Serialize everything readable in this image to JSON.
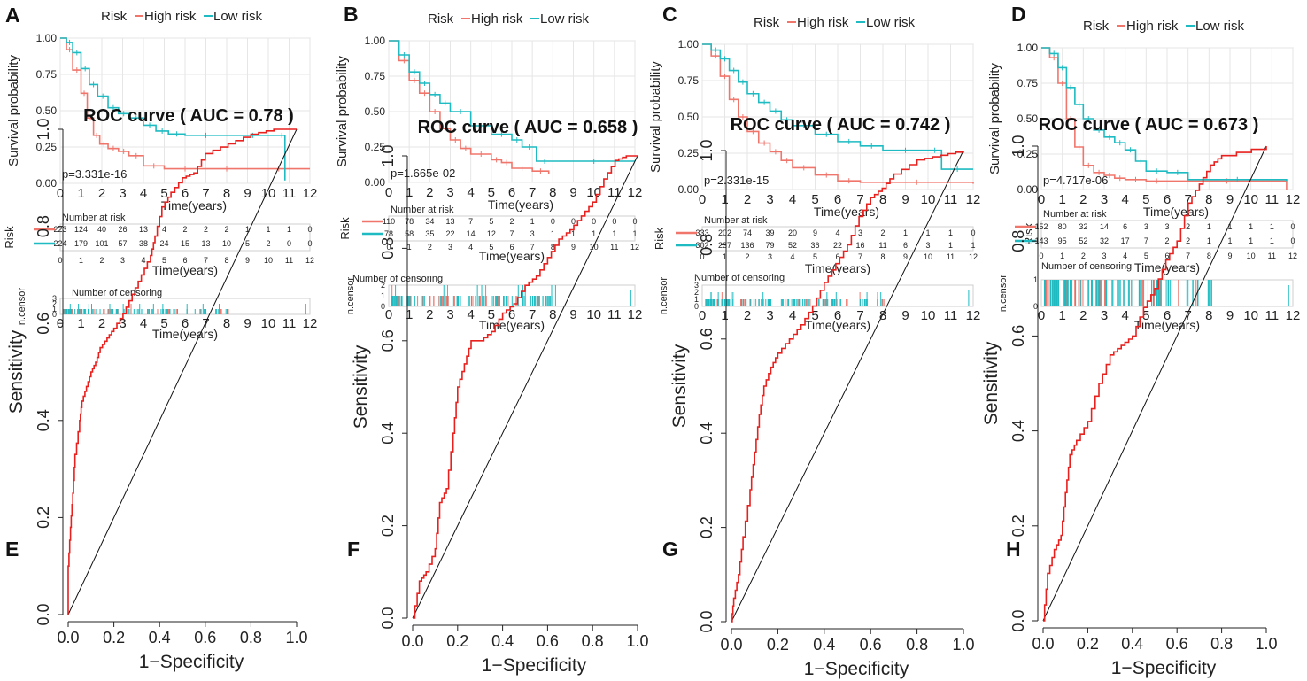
{
  "colors": {
    "high_risk": "#f0766c",
    "low_risk": "#1ebcc2",
    "roc": "#e8201e",
    "grid": "#e6e6e6",
    "panel_border": "#cfcfcf"
  },
  "chart_data": [
    {
      "panel": "A",
      "type": "line",
      "subtype": "kaplan-meier",
      "legend_title": "Risk",
      "legend_entries": [
        "High risk",
        "Low risk"
      ],
      "ylabel": "Survival probability",
      "xlabel": "Time(years)",
      "xlim": [
        0,
        12
      ],
      "ylim": [
        0,
        1
      ],
      "x_ticks": [
        "0",
        "1",
        "2",
        "3",
        "4",
        "5",
        "6",
        "7",
        "8",
        "9",
        "10",
        "11",
        "12"
      ],
      "y_ticks": [
        "0.00",
        "0.25",
        "0.50",
        "0.75",
        "1.00"
      ],
      "pvalue_text": "p=3.331e-16",
      "series": [
        {
          "name": "High risk",
          "x": [
            0,
            0.3,
            0.6,
            1.0,
            1.3,
            1.6,
            1.9,
            2.3,
            2.8,
            3.3,
            4.0,
            5.0,
            7.0,
            9.0,
            12.0
          ],
          "y": [
            1.0,
            0.92,
            0.78,
            0.62,
            0.45,
            0.33,
            0.27,
            0.24,
            0.22,
            0.19,
            0.12,
            0.1,
            0.1,
            0.1,
            0.1
          ]
        },
        {
          "name": "Low risk",
          "x": [
            0,
            0.3,
            0.6,
            1.0,
            1.4,
            1.8,
            2.3,
            2.8,
            3.3,
            4.0,
            4.6,
            5.2,
            6.0,
            8.0,
            10.5,
            10.8
          ],
          "y": [
            1.0,
            0.97,
            0.9,
            0.79,
            0.68,
            0.6,
            0.52,
            0.48,
            0.45,
            0.4,
            0.36,
            0.34,
            0.33,
            0.33,
            0.33,
            0.02
          ]
        }
      ],
      "risk_table": {
        "title": "Number at risk",
        "row_label": "Risk",
        "xlabel": "Time(years)",
        "x_ticks": [
          "0",
          "1",
          "2",
          "3",
          "4",
          "5",
          "6",
          "7",
          "8",
          "9",
          "10",
          "11",
          "12"
        ],
        "rows": [
          {
            "name": "High risk",
            "values": [
              "223",
              "124",
              "40",
              "26",
              "13",
              "4",
              "2",
              "2",
              "2",
              "1",
              "1",
              "1",
              "0"
            ]
          },
          {
            "name": "Low risk",
            "values": [
              "224",
              "179",
              "101",
              "57",
              "38",
              "24",
              "15",
              "13",
              "10",
              "5",
              "2",
              "0",
              "0"
            ]
          }
        ]
      },
      "censor": {
        "title": "Number of censoring",
        "ylabel": "n.censor",
        "xlabel": "Time(years)",
        "x_ticks": [
          "0",
          "1",
          "2",
          "3",
          "4",
          "5",
          "6",
          "7",
          "8",
          "9",
          "10",
          "11",
          "12"
        ],
        "y_ticks": [
          "0",
          "1",
          "2",
          "3"
        ],
        "ymax": 3
      }
    },
    {
      "panel": "B",
      "type": "line",
      "subtype": "kaplan-meier",
      "legend_title": "Risk",
      "legend_entries": [
        "High risk",
        "Low risk"
      ],
      "ylabel": "Survival probability",
      "xlabel": "Time(years)",
      "xlim": [
        0,
        12
      ],
      "ylim": [
        0,
        1
      ],
      "x_ticks": [
        "0",
        "1",
        "2",
        "3",
        "4",
        "5",
        "6",
        "7",
        "8",
        "9",
        "10",
        "11",
        "12"
      ],
      "y_ticks": [
        "0.00",
        "0.25",
        "0.50",
        "0.75",
        "1.00"
      ],
      "pvalue_text": "p=1.665e-02",
      "series": [
        {
          "name": "High risk",
          "x": [
            0,
            0.5,
            1.0,
            1.5,
            2.0,
            2.5,
            3.0,
            3.5,
            4.0,
            5.0,
            5.5,
            6.0,
            7.0,
            7.8
          ],
          "y": [
            1.0,
            0.86,
            0.72,
            0.63,
            0.5,
            0.38,
            0.3,
            0.24,
            0.2,
            0.16,
            0.14,
            0.1,
            0.08,
            0.06
          ]
        },
        {
          "name": "Low risk",
          "x": [
            0,
            0.5,
            1.0,
            1.5,
            2.0,
            2.5,
            3.0,
            4.0,
            5.0,
            6.0,
            6.5,
            7.2,
            8.0,
            12.0
          ],
          "y": [
            1.0,
            0.9,
            0.78,
            0.7,
            0.62,
            0.56,
            0.5,
            0.4,
            0.34,
            0.3,
            0.25,
            0.15,
            0.15,
            0.15
          ]
        }
      ],
      "risk_table": {
        "title": "Number at risk",
        "row_label": "Risk",
        "xlabel": "Time(years)",
        "x_ticks": [
          "0",
          "1",
          "2",
          "3",
          "4",
          "5",
          "6",
          "7",
          "8",
          "9",
          "10",
          "11",
          "12"
        ],
        "rows": [
          {
            "name": "High risk",
            "values": [
              "110",
              "78",
              "34",
              "13",
              "7",
              "5",
              "2",
              "1",
              "0",
              "0",
              "0",
              "0",
              "0"
            ]
          },
          {
            "name": "Low risk",
            "values": [
              "78",
              "58",
              "35",
              "22",
              "14",
              "12",
              "7",
              "3",
              "1",
              "1",
              "1",
              "1",
              "1"
            ]
          }
        ]
      },
      "censor": {
        "title": "Number of censoring",
        "ylabel": "n.censor",
        "xlabel": "Time(years)",
        "x_ticks": [
          "0",
          "1",
          "2",
          "3",
          "4",
          "5",
          "6",
          "7",
          "8",
          "9",
          "10",
          "11",
          "12"
        ],
        "y_ticks": [
          "0",
          "1",
          "2"
        ],
        "ymax": 2
      }
    },
    {
      "panel": "C",
      "type": "line",
      "subtype": "kaplan-meier",
      "legend_title": "Risk",
      "legend_entries": [
        "High risk",
        "Low risk"
      ],
      "ylabel": "Survival probability",
      "xlabel": "Time(years)",
      "xlim": [
        0,
        12
      ],
      "ylim": [
        0,
        1
      ],
      "x_ticks": [
        "0",
        "1",
        "2",
        "3",
        "4",
        "5",
        "6",
        "7",
        "8",
        "9",
        "10",
        "11",
        "12"
      ],
      "y_ticks": [
        "0.00",
        "0.25",
        "0.50",
        "0.75",
        "1.00"
      ],
      "pvalue_text": "p=2.331e-15",
      "series": [
        {
          "name": "High risk",
          "x": [
            0,
            0.4,
            0.8,
            1.2,
            1.6,
            2.0,
            2.5,
            3.0,
            3.5,
            4.0,
            5.0,
            6.0,
            7.0,
            12.0
          ],
          "y": [
            1.0,
            0.92,
            0.78,
            0.62,
            0.5,
            0.4,
            0.32,
            0.26,
            0.2,
            0.15,
            0.1,
            0.06,
            0.05,
            0.04
          ]
        },
        {
          "name": "Low risk",
          "x": [
            0,
            0.4,
            0.8,
            1.2,
            1.6,
            2.0,
            2.5,
            3.0,
            3.5,
            4.0,
            5.0,
            6.0,
            7.0,
            8.0,
            10.0,
            10.6,
            12.0
          ],
          "y": [
            1.0,
            0.96,
            0.9,
            0.82,
            0.74,
            0.66,
            0.6,
            0.54,
            0.48,
            0.44,
            0.38,
            0.33,
            0.3,
            0.27,
            0.27,
            0.14,
            0.14
          ]
        }
      ],
      "risk_table": {
        "title": "Number at risk",
        "row_label": "Risk",
        "xlabel": "Time(years)",
        "x_ticks": [
          "0",
          "1",
          "2",
          "3",
          "4",
          "5",
          "6",
          "7",
          "8",
          "9",
          "10",
          "11",
          "12"
        ],
        "rows": [
          {
            "name": "High risk",
            "values": [
              "333",
              "202",
              "74",
              "39",
              "20",
              "9",
              "4",
              "3",
              "2",
              "1",
              "1",
              "1",
              "0"
            ]
          },
          {
            "name": "Low risk",
            "values": [
              "302",
              "237",
              "136",
              "79",
              "52",
              "36",
              "22",
              "16",
              "11",
              "6",
              "3",
              "1",
              "1"
            ]
          }
        ]
      },
      "censor": {
        "title": "Number of censoring",
        "ylabel": "n.censor",
        "xlabel": "Time(years)",
        "x_ticks": [
          "0",
          "1",
          "2",
          "3",
          "4",
          "5",
          "6",
          "7",
          "8",
          "9",
          "10",
          "11",
          "12"
        ],
        "y_ticks": [
          "0",
          "1",
          "2",
          "3"
        ],
        "ymax": 3
      }
    },
    {
      "panel": "D",
      "type": "line",
      "subtype": "kaplan-meier",
      "legend_title": "Risk",
      "legend_entries": [
        "High risk",
        "Low risk"
      ],
      "ylabel": "Survival probability",
      "xlabel": "Time(years)",
      "xlim": [
        0,
        12
      ],
      "ylim": [
        0,
        1
      ],
      "x_ticks": [
        "0",
        "1",
        "2",
        "3",
        "4",
        "5",
        "6",
        "7",
        "8",
        "9",
        "10",
        "11",
        "12"
      ],
      "y_ticks": [
        "0.00",
        "0.25",
        "0.50",
        "0.75",
        "1.00"
      ],
      "pvalue_text": "p=4.717e-06",
      "series": [
        {
          "name": "High risk",
          "x": [
            0,
            0.4,
            0.8,
            1.2,
            1.6,
            2.0,
            2.5,
            3.0,
            3.5,
            4.0,
            5.0,
            6.0,
            11.7
          ],
          "y": [
            1.0,
            0.93,
            0.75,
            0.5,
            0.3,
            0.17,
            0.12,
            0.1,
            0.08,
            0.07,
            0.06,
            0.06,
            0.0
          ]
        },
        {
          "name": "Low risk",
          "x": [
            0,
            0.4,
            0.8,
            1.2,
            1.6,
            2.0,
            2.5,
            3.0,
            3.5,
            4.0,
            4.5,
            5.0,
            6.0,
            7.0,
            11.7
          ],
          "y": [
            1.0,
            0.96,
            0.86,
            0.72,
            0.6,
            0.5,
            0.42,
            0.37,
            0.33,
            0.28,
            0.2,
            0.13,
            0.12,
            0.07,
            0.06
          ]
        }
      ],
      "risk_table": {
        "title": "Number at risk",
        "row_label": "Risk",
        "xlabel": "Time(years)",
        "x_ticks": [
          "0",
          "1",
          "2",
          "3",
          "4",
          "5",
          "6",
          "7",
          "8",
          "9",
          "10",
          "11",
          "12"
        ],
        "rows": [
          {
            "name": "High risk",
            "values": [
              "152",
              "80",
              "32",
              "14",
              "6",
              "3",
              "3",
              "2",
              "1",
              "1",
              "1",
              "1",
              "0"
            ]
          },
          {
            "name": "Low risk",
            "values": [
              "143",
              "95",
              "52",
              "32",
              "17",
              "7",
              "2",
              "2",
              "1",
              "1",
              "1",
              "1",
              "0"
            ]
          }
        ]
      },
      "censor": {
        "title": "Number of censoring",
        "ylabel": "n.censor",
        "xlabel": "Time(years)",
        "x_ticks": [
          "0",
          "1",
          "2",
          "3",
          "4",
          "5",
          "6",
          "7",
          "8",
          "9",
          "10",
          "11",
          "12"
        ],
        "y_ticks": [
          "0",
          "1"
        ],
        "ymax": 1
      }
    },
    {
      "panel": "E",
      "type": "line",
      "subtype": "roc",
      "title": "ROC curve ( AUC =  0.78 )",
      "xlabel": "1−Specificity",
      "ylabel": "Sensitivity",
      "xlim": [
        0,
        1
      ],
      "ylim": [
        0,
        1
      ],
      "x_ticks": [
        "0.0",
        "0.2",
        "0.4",
        "0.6",
        "0.8",
        "1.0"
      ],
      "y_ticks": [
        "0.0",
        "0.2",
        "0.4",
        "0.6",
        "0.8",
        "1.0"
      ],
      "x": [
        0,
        0,
        0.01,
        0.02,
        0.03,
        0.05,
        0.06,
        0.08,
        0.1,
        0.12,
        0.14,
        0.17,
        0.2,
        0.24,
        0.28,
        0.32,
        0.36,
        0.38,
        0.41,
        0.45,
        0.5,
        0.55,
        0.6,
        0.7,
        0.8,
        0.9,
        1.0
      ],
      "y": [
        0,
        0.1,
        0.18,
        0.25,
        0.33,
        0.4,
        0.44,
        0.47,
        0.5,
        0.52,
        0.55,
        0.57,
        0.59,
        0.62,
        0.66,
        0.7,
        0.74,
        0.78,
        0.84,
        0.87,
        0.9,
        0.91,
        0.95,
        0.97,
        0.99,
        1.0,
        1.0
      ]
    },
    {
      "panel": "F",
      "type": "line",
      "subtype": "roc",
      "title": "ROC curve ( AUC =  0.658 )",
      "xlabel": "1−Specificity",
      "ylabel": "Sensitivity",
      "xlim": [
        0,
        1
      ],
      "ylim": [
        0,
        1
      ],
      "x_ticks": [
        "0.0",
        "0.2",
        "0.4",
        "0.6",
        "0.8",
        "1.0"
      ],
      "y_ticks": [
        "0.0",
        "0.2",
        "0.4",
        "0.6",
        "0.8",
        "1.0"
      ],
      "x": [
        0,
        0.03,
        0.06,
        0.1,
        0.12,
        0.15,
        0.18,
        0.2,
        0.23,
        0.26,
        0.3,
        0.35,
        0.4,
        0.45,
        0.5,
        0.55,
        0.6,
        0.65,
        0.7,
        0.75,
        0.8,
        0.85,
        0.9,
        0.95,
        1.0
      ],
      "y": [
        0,
        0.08,
        0.1,
        0.15,
        0.25,
        0.28,
        0.4,
        0.5,
        0.55,
        0.6,
        0.6,
        0.62,
        0.66,
        0.68,
        0.72,
        0.74,
        0.78,
        0.82,
        0.84,
        0.87,
        0.9,
        0.95,
        0.99,
        1.0,
        1.0
      ]
    },
    {
      "panel": "G",
      "type": "line",
      "subtype": "roc",
      "title": "ROC curve ( AUC =  0.742 )",
      "xlabel": "1−Specificity",
      "ylabel": "Sensitivity",
      "xlim": [
        0,
        1
      ],
      "ylim": [
        0,
        1
      ],
      "x_ticks": [
        "0.0",
        "0.2",
        "0.4",
        "0.6",
        "0.8",
        "1.0"
      ],
      "y_ticks": [
        "0.0",
        "0.2",
        "0.4",
        "0.6",
        "0.8",
        "1.0"
      ],
      "x": [
        0,
        0.01,
        0.03,
        0.05,
        0.08,
        0.1,
        0.12,
        0.14,
        0.17,
        0.2,
        0.25,
        0.3,
        0.35,
        0.4,
        0.45,
        0.5,
        0.55,
        0.6,
        0.65,
        0.7,
        0.8,
        0.9,
        1.0
      ],
      "y": [
        0,
        0.05,
        0.1,
        0.18,
        0.28,
        0.36,
        0.44,
        0.5,
        0.54,
        0.57,
        0.6,
        0.63,
        0.67,
        0.72,
        0.76,
        0.8,
        0.86,
        0.9,
        0.92,
        0.95,
        0.98,
        0.99,
        1.0
      ]
    },
    {
      "panel": "H",
      "type": "line",
      "subtype": "roc",
      "title": "ROC curve ( AUC =  0.673 )",
      "xlabel": "1−Specificity",
      "ylabel": "Sensitivity",
      "xlim": [
        0,
        1
      ],
      "ylim": [
        0,
        1
      ],
      "x_ticks": [
        "0.0",
        "0.2",
        "0.4",
        "0.6",
        "0.8",
        "1.0"
      ],
      "y_ticks": [
        "0.0",
        "0.2",
        "0.4",
        "0.6",
        "0.8",
        "1.0"
      ],
      "x": [
        0,
        0.02,
        0.05,
        0.08,
        0.1,
        0.12,
        0.15,
        0.2,
        0.25,
        0.3,
        0.35,
        0.4,
        0.45,
        0.5,
        0.55,
        0.6,
        0.65,
        0.7,
        0.75,
        0.8,
        1.0
      ],
      "y": [
        0,
        0.1,
        0.15,
        0.18,
        0.27,
        0.35,
        0.38,
        0.42,
        0.5,
        0.56,
        0.58,
        0.6,
        0.66,
        0.7,
        0.76,
        0.8,
        0.88,
        0.92,
        0.96,
        0.98,
        1.0
      ]
    }
  ]
}
